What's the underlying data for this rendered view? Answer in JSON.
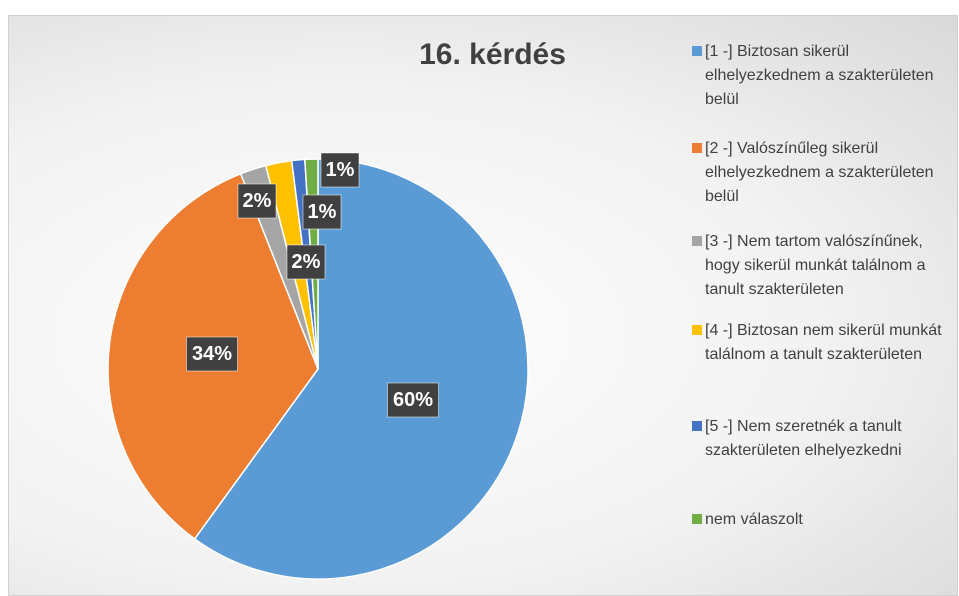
{
  "chart_data": {
    "type": "pie",
    "title": "16. kérdés",
    "categories": [
      "[1 -] Biztosan sikerül elhelyezkednem a szakterületen belül",
      "[2 -] Valószínűleg sikerül elhelyezkednem a szakterületen belül",
      "[3 -] Nem tartom valószínűnek, hogy sikerül munkát találnom a tanult szakterületen",
      "[4 -] Biztosan nem sikerül munkát találnom a tanult szakterületen",
      "[5 -] Nem szeretnék a tanult szakterületen elhelyezkedni",
      "nem válaszolt"
    ],
    "values": [
      60,
      34,
      2,
      2,
      1,
      1
    ],
    "value_labels": [
      "60%",
      "34%",
      "2%",
      "2%",
      "1%",
      "1%"
    ],
    "colors": [
      "#5b9bd5",
      "#ed7d31",
      "#a5a5a5",
      "#ffc000",
      "#4472c4",
      "#70ad47"
    ],
    "legend": "right"
  }
}
